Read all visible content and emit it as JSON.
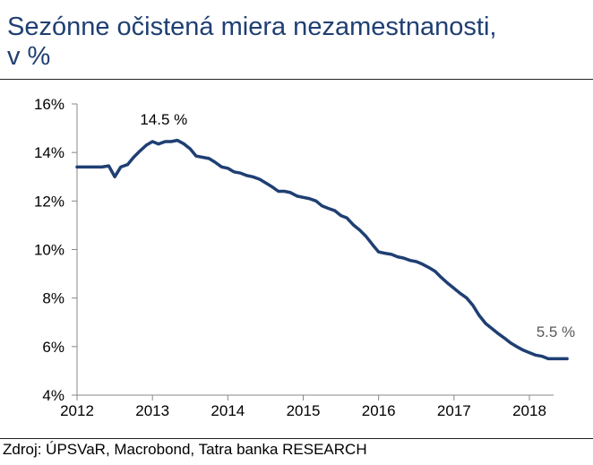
{
  "header": {
    "title_line1": "Sezónne očistená miera nezamestnanosti,",
    "title_line2": "v %"
  },
  "footer": {
    "source": "Zdroj: ÚPSVaR, Macrobond, Tatra banka RESEARCH"
  },
  "colors": {
    "title": "#1f3f73",
    "line": "#1f3f73",
    "annotation_end": "#595959"
  },
  "chart_data": {
    "type": "line",
    "title": "Sezónne očistená miera nezamestnanosti, v %",
    "xlabel": "",
    "ylabel": "",
    "xlim": [
      2012,
      2018.6
    ],
    "ylim": [
      4,
      16
    ],
    "x_ticks": [
      2012,
      2013,
      2014,
      2015,
      2016,
      2017,
      2018
    ],
    "x_tick_labels": [
      "2012",
      "2013",
      "2014",
      "2015",
      "2016",
      "2017",
      "2018"
    ],
    "y_ticks": [
      4,
      6,
      8,
      10,
      12,
      14,
      16
    ],
    "y_tick_labels": [
      "4%",
      "6%",
      "8%",
      "10%",
      "12%",
      "14%",
      "16%"
    ],
    "grid": false,
    "legend": "none",
    "series": [
      {
        "x": [
          2012.0,
          2012.08,
          2012.17,
          2012.25,
          2012.33,
          2012.42,
          2012.5,
          2012.58,
          2012.67,
          2012.75,
          2012.83,
          2012.92,
          2013.0,
          2013.08,
          2013.17,
          2013.25,
          2013.33,
          2013.42,
          2013.5,
          2013.58,
          2013.67,
          2013.75,
          2013.83,
          2013.92,
          2014.0,
          2014.08,
          2014.17,
          2014.25,
          2014.33,
          2014.42,
          2014.5,
          2014.58,
          2014.67,
          2014.75,
          2014.83,
          2014.92,
          2015.0,
          2015.08,
          2015.17,
          2015.25,
          2015.33,
          2015.42,
          2015.5,
          2015.58,
          2015.67,
          2015.75,
          2015.83,
          2015.92,
          2016.0,
          2016.08,
          2016.17,
          2016.25,
          2016.33,
          2016.42,
          2016.5,
          2016.58,
          2016.67,
          2016.75,
          2016.83,
          2016.92,
          2017.0,
          2017.08,
          2017.17,
          2017.25,
          2017.33,
          2017.42,
          2017.5,
          2017.58,
          2017.67,
          2017.75,
          2017.83,
          2017.92,
          2018.0,
          2018.08,
          2018.17,
          2018.25,
          2018.33,
          2018.42,
          2018.5
        ],
        "values": [
          13.4,
          13.4,
          13.4,
          13.4,
          13.4,
          13.45,
          13.0,
          13.4,
          13.5,
          13.8,
          14.05,
          14.3,
          14.45,
          14.35,
          14.45,
          14.45,
          14.5,
          14.35,
          14.15,
          13.85,
          13.8,
          13.75,
          13.6,
          13.4,
          13.35,
          13.2,
          13.15,
          13.05,
          13.0,
          12.9,
          12.75,
          12.6,
          12.4,
          12.4,
          12.35,
          12.2,
          12.15,
          12.1,
          12.0,
          11.8,
          11.7,
          11.6,
          11.4,
          11.3,
          11.0,
          10.8,
          10.55,
          10.2,
          9.9,
          9.85,
          9.8,
          9.7,
          9.65,
          9.55,
          9.5,
          9.4,
          9.25,
          9.1,
          8.85,
          8.6,
          8.4,
          8.2,
          8.0,
          7.7,
          7.3,
          6.95,
          6.75,
          6.55,
          6.35,
          6.15,
          6.0,
          5.85,
          5.75,
          5.65,
          5.6,
          5.5,
          5.5,
          5.5,
          5.5
        ]
      }
    ],
    "annotations": [
      {
        "text": "14.5 %",
        "x": 2013.15,
        "y": 15.15
      },
      {
        "text": "5.5 %",
        "x": 2018.35,
        "y": 6.4
      }
    ]
  }
}
